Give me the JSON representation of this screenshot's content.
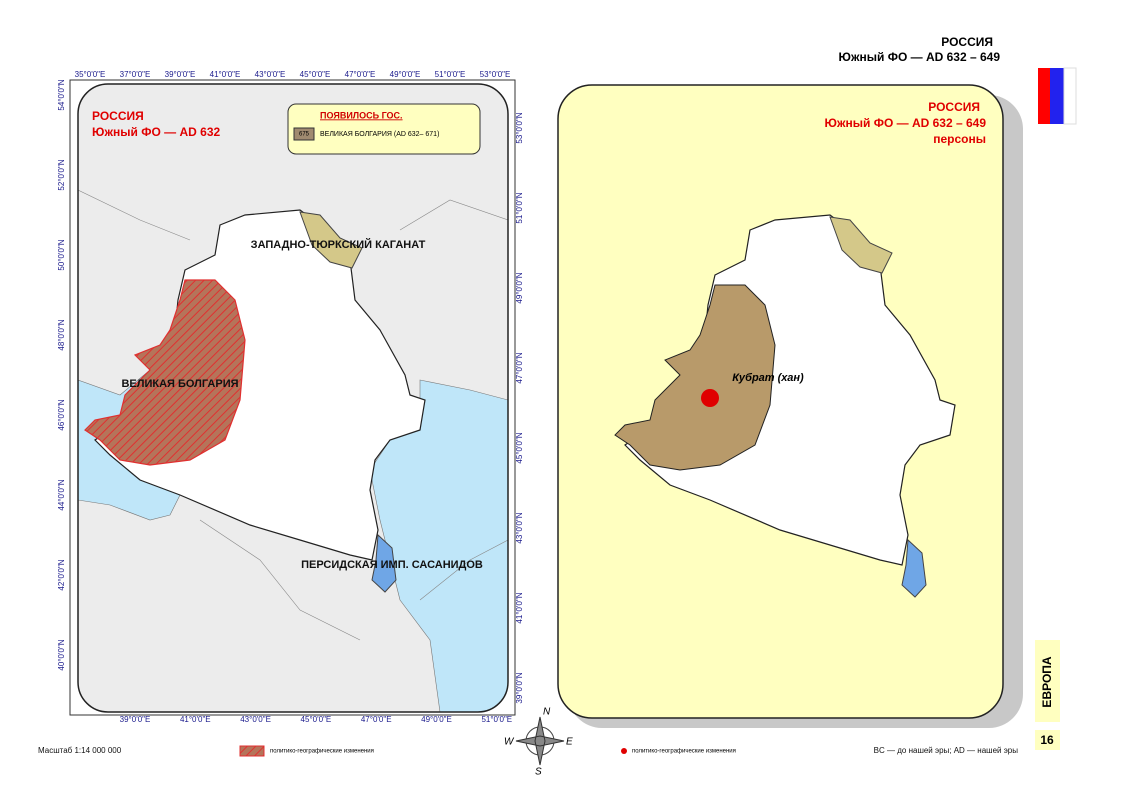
{
  "header": {
    "country": "РОССИЯ",
    "subtitle": "Южный ФО — AD 632 – 649"
  },
  "left_map": {
    "title": "РОССИЯ",
    "subtitle": "Южный ФО — AD 632",
    "legend": {
      "heading": "ПОЯВИЛОСЬ ГОС.",
      "icon_label": "675",
      "item": "ВЕЛИКАЯ БОЛГАРИЯ (AD 632– 671)"
    },
    "labels": [
      "ЗАПАДНО-ТЮРКСКИЙ КАГАНАТ",
      "ВЕЛИКАЯ БОЛГАРИЯ",
      "ПЕРСИДСКАЯ ИМП. САСАНИДОВ"
    ],
    "top_axis": [
      "35°0'0\"E",
      "37°0'0\"E",
      "39°0'0\"E",
      "41°0'0\"E",
      "43°0'0\"E",
      "45°0'0\"E",
      "47°0'0\"E",
      "49°0'0\"E",
      "51°0'0\"E",
      "53°0'0\"E"
    ],
    "bottom_axis": [
      "39°0'0\"E",
      "41°0'0\"E",
      "43°0'0\"E",
      "45°0'0\"E",
      "47°0'0\"E",
      "49°0'0\"E",
      "51°0'0\"E"
    ],
    "left_axis": [
      "54°0'0\"N",
      "52°0'0\"N",
      "50°0'0\"N",
      "48°0'0\"N",
      "46°0'0\"N",
      "44°0'0\"N",
      "42°0'0\"N",
      "40°0'0\"N"
    ],
    "right_axis": [
      "53°0'0\"N",
      "51°0'0\"N",
      "49°0'0\"N",
      "47°0'0\"N",
      "45°0'0\"N",
      "43°0'0\"N",
      "41°0'0\"N",
      "39°0'0\"N"
    ]
  },
  "right_map": {
    "title": "РОССИЯ",
    "subtitle": "Южный ФО — AD 632 – 649",
    "caption": "персоны",
    "person": "Кубрат (хан)"
  },
  "compass": [
    "N",
    "W",
    "E",
    "S"
  ],
  "side": {
    "region": "ЕВРОПА",
    "page": "16"
  },
  "footer": {
    "scale": "Масштаб 1:14 000 000",
    "legend_hatch": "политико-географические изменения",
    "legend_dot": "политико-географические изменения",
    "note": "BC — до нашей эры; AD — нашей эры"
  }
}
